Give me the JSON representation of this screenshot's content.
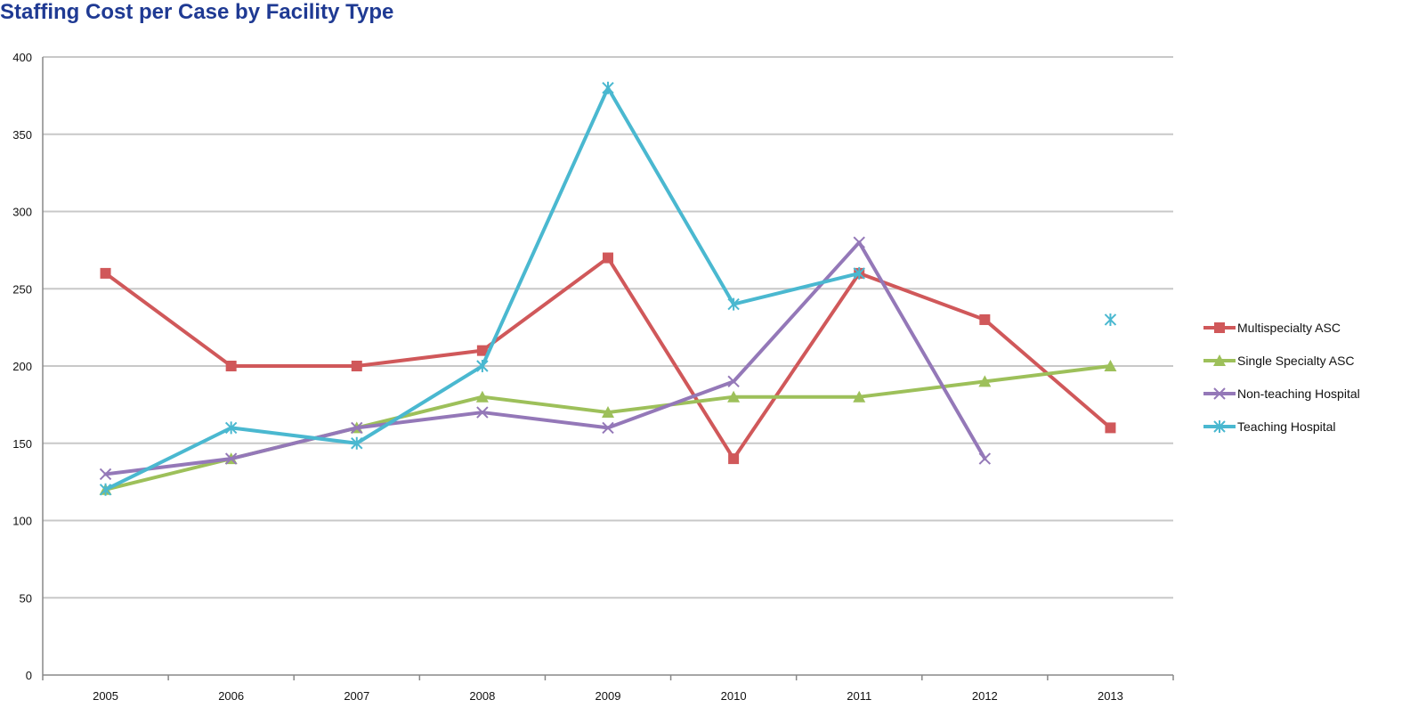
{
  "chart_data": {
    "type": "line",
    "title": "Staffing Cost per Case by Facility Type",
    "xlabel": "",
    "ylabel": "",
    "categories": [
      "2005",
      "2006",
      "2007",
      "2008",
      "2009",
      "2010",
      "2011",
      "2012",
      "2013"
    ],
    "ylim": [
      0,
      400
    ],
    "yticks": [
      0,
      50,
      100,
      150,
      200,
      250,
      300,
      350,
      400
    ],
    "grid": "horizontal",
    "legend_position": "right",
    "series": [
      {
        "name": "Multispecialty ASC",
        "color": "#d0585a",
        "marker": "square",
        "values": [
          260,
          200,
          200,
          210,
          270,
          140,
          260,
          230,
          160
        ]
      },
      {
        "name": "Single Specialty ASC",
        "color": "#9dc05a",
        "marker": "triangle",
        "values": [
          120,
          140,
          160,
          180,
          170,
          180,
          180,
          190,
          200
        ]
      },
      {
        "name": "Non-teaching Hospital",
        "color": "#9478b8",
        "marker": "x",
        "values": [
          130,
          140,
          160,
          170,
          160,
          190,
          280,
          140,
          null
        ]
      },
      {
        "name": "Teaching Hospital",
        "color": "#4ab8d0",
        "marker": "star",
        "values": [
          120,
          160,
          150,
          200,
          380,
          240,
          260,
          null,
          230
        ]
      }
    ]
  }
}
